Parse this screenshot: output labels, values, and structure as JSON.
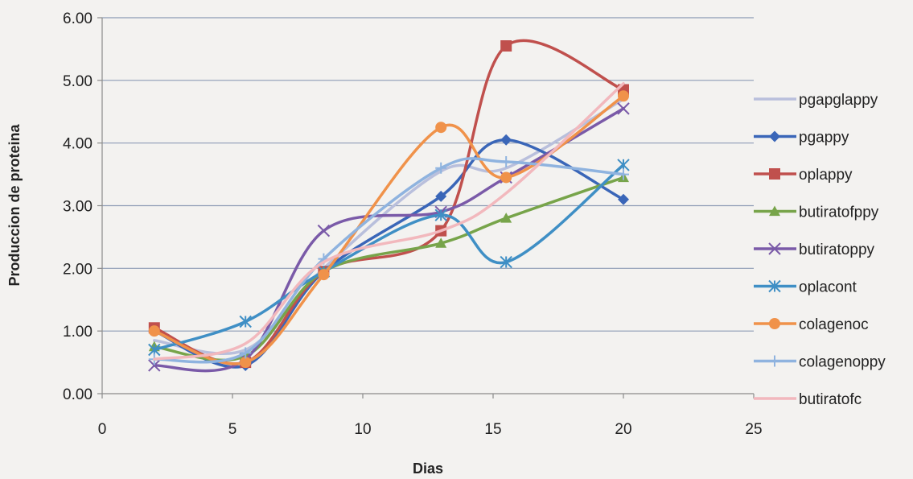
{
  "chart_data": {
    "type": "line",
    "title": "",
    "xlabel": "Dias",
    "ylabel": "Produccion de proteina",
    "xlim": [
      0,
      25
    ],
    "ylim": [
      0,
      6
    ],
    "xticks": [
      "0",
      "5",
      "10",
      "15",
      "20",
      "25"
    ],
    "yticks": [
      "0.00",
      "1.00",
      "2.00",
      "3.00",
      "4.00",
      "5.00",
      "6.00"
    ],
    "grid": "horizontal",
    "legend_position": "right",
    "series": [
      {
        "name": "pgapglappy",
        "color": "#b9bfdc",
        "marker": "none",
        "x": [
          2,
          5.5,
          8.5,
          13,
          15.5,
          20
        ],
        "y": [
          0.85,
          0.7,
          2.0,
          3.55,
          3.6,
          4.7
        ]
      },
      {
        "name": "pgappy",
        "color": "#3a66b8",
        "marker": "diamond",
        "x": [
          2,
          5.5,
          8.5,
          13,
          15.5,
          20
        ],
        "y": [
          1.0,
          0.45,
          1.95,
          3.15,
          4.05,
          3.1
        ]
      },
      {
        "name": "oplappy",
        "color": "#c0504d",
        "marker": "square",
        "x": [
          2,
          5.5,
          8.5,
          13,
          15.5,
          20
        ],
        "y": [
          1.05,
          0.5,
          1.95,
          2.6,
          5.55,
          4.85
        ]
      },
      {
        "name": "butiratofppy",
        "color": "#77a44a",
        "marker": "triangle",
        "x": [
          2,
          5.5,
          8.5,
          13,
          15.5,
          20
        ],
        "y": [
          0.75,
          0.6,
          1.95,
          2.4,
          2.8,
          3.45
        ]
      },
      {
        "name": "butiratoppy",
        "color": "#7a5aa8",
        "marker": "x",
        "x": [
          2,
          5.5,
          8.5,
          13,
          15.5,
          20
        ],
        "y": [
          0.45,
          0.55,
          2.6,
          2.9,
          3.45,
          4.55
        ]
      },
      {
        "name": "oplacont",
        "color": "#3f8fc5",
        "marker": "star",
        "x": [
          2,
          5.5,
          8.5,
          13,
          15.5,
          20
        ],
        "y": [
          0.7,
          1.15,
          1.95,
          2.85,
          2.1,
          3.65
        ]
      },
      {
        "name": "colagenoc",
        "color": "#f0924a",
        "marker": "circle",
        "x": [
          2,
          5.5,
          8.5,
          13,
          15.5,
          20
        ],
        "y": [
          1.0,
          0.5,
          1.9,
          4.25,
          3.45,
          4.75
        ]
      },
      {
        "name": "colagenoppy",
        "color": "#8fb3df",
        "marker": "plus",
        "x": [
          2,
          5.5,
          8.5,
          13,
          15.5,
          20
        ],
        "y": [
          0.55,
          0.65,
          2.15,
          3.6,
          3.7,
          3.5
        ]
      },
      {
        "name": "butiratofc",
        "color": "#f2b8bd",
        "marker": "none",
        "x": [
          2,
          5.5,
          8.5,
          13,
          15.5,
          20
        ],
        "y": [
          0.55,
          0.8,
          2.1,
          2.6,
          3.2,
          4.95
        ]
      }
    ]
  }
}
